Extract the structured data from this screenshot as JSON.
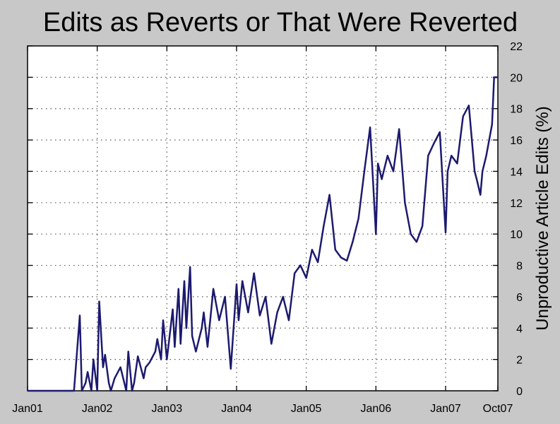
{
  "chart_data": {
    "type": "line",
    "title": "Edits as Reverts or That Were Reverted",
    "xlabel": "",
    "ylabel": "Unproductive Article Edits (%)",
    "x_ticks": [
      "Jan01",
      "Jan02",
      "Jan03",
      "Jan04",
      "Jan05",
      "Jan06",
      "Jan07",
      "Oct07"
    ],
    "y_ticks": [
      "0",
      "2",
      "4",
      "6",
      "8",
      "10",
      "12",
      "14",
      "16",
      "18",
      "20",
      "22"
    ],
    "xlim": [
      "2001-01",
      "2007-10"
    ],
    "ylim": [
      0,
      22
    ],
    "y_axis_side": "right",
    "grid": true,
    "line_color": "#1c1a6e",
    "series": [
      {
        "x": [
          "2001-01",
          "2001-04",
          "2001-07",
          "2001-09",
          "2001-10",
          "2001-10",
          "2001-11",
          "2001-11",
          "2001-12",
          "2001-12",
          "2002-01",
          "2002-01",
          "2002-02",
          "2002-02",
          "2002-03",
          "2002-03",
          "2002-04",
          "2002-05",
          "2002-06",
          "2002-06",
          "2002-07",
          "2002-07",
          "2002-08",
          "2002-09",
          "2002-09",
          "2002-10",
          "2002-11",
          "2002-11",
          "2002-12",
          "2002-12",
          "2003-01",
          "2003-02",
          "2003-02",
          "2003-03",
          "2003-03",
          "2003-04",
          "2003-04",
          "2003-05",
          "2003-05",
          "2003-06",
          "2003-07",
          "2003-07",
          "2003-08",
          "2003-09",
          "2003-10",
          "2003-11",
          "2003-12",
          "2004-01",
          "2004-01",
          "2004-02",
          "2004-03",
          "2004-04",
          "2004-05",
          "2004-06",
          "2004-07",
          "2004-08",
          "2004-09",
          "2004-10",
          "2004-11",
          "2004-12",
          "2005-01",
          "2005-02",
          "2005-03",
          "2005-04",
          "2005-05",
          "2005-06",
          "2005-07",
          "2005-08",
          "2005-09",
          "2005-10",
          "2005-11",
          "2005-12",
          "2006-01",
          "2006-01",
          "2006-02",
          "2006-03",
          "2006-04",
          "2006-05",
          "2006-06",
          "2006-07",
          "2006-08",
          "2006-09",
          "2006-10",
          "2006-11",
          "2006-12",
          "2007-01",
          "2007-01",
          "2007-02",
          "2007-03",
          "2007-04",
          "2007-05",
          "2007-06",
          "2007-06",
          "2007-07",
          "2007-07",
          "2007-08",
          "2007-09",
          "2007-09",
          "2007-10"
        ],
        "y": [
          0,
          0,
          0,
          0,
          4.8,
          0,
          0.5,
          1.2,
          0,
          2,
          0,
          5.7,
          1.5,
          2.3,
          0.5,
          0,
          0.8,
          1.5,
          0,
          2.5,
          0,
          0.5,
          2.2,
          0.8,
          1.5,
          1.8,
          2.5,
          3.3,
          2,
          4.5,
          2,
          5.2,
          2.8,
          6.5,
          3,
          7,
          4,
          7.9,
          3.5,
          2.5,
          4,
          5,
          2.8,
          6.5,
          4.5,
          6,
          1.4,
          6.8,
          4.5,
          7,
          5,
          7.5,
          4.8,
          6,
          3,
          5,
          6,
          4.5,
          7.5,
          8,
          7.2,
          9,
          8.2,
          10.5,
          12.5,
          9,
          8.5,
          8.3,
          9.5,
          11,
          14,
          16.8,
          10,
          14.5,
          13.5,
          15,
          14,
          16.7,
          12,
          10,
          9.5,
          10.5,
          15,
          15.8,
          16.5,
          10.1,
          14,
          15,
          14.5,
          17.5,
          18.2,
          14,
          13.5,
          12.5,
          14,
          15,
          17,
          20,
          20
        ]
      }
    ]
  }
}
